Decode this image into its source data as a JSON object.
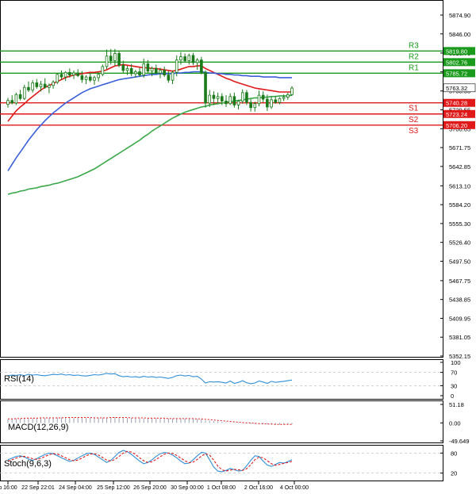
{
  "chart_data": [
    {
      "type": "candlestick",
      "title": "",
      "ylim": [
        5352.15,
        5874.9
      ],
      "yticks": [
        "5874.90",
        "5846.00",
        "5816.70",
        "5787.75",
        "5758.55",
        "5729.55",
        "5700.65",
        "5671.75",
        "5642.85",
        "5613.10",
        "5584.20",
        "5555.30",
        "5526.40",
        "5497.50",
        "5467.75",
        "5438.85",
        "5409.95",
        "5381.05",
        "5352.15"
      ],
      "current_price": "5763.32",
      "candles": [
        {
          "o": 5738,
          "h": 5748,
          "l": 5733,
          "c": 5744
        },
        {
          "o": 5744,
          "h": 5752,
          "l": 5738,
          "c": 5740
        },
        {
          "o": 5740,
          "h": 5756,
          "l": 5737,
          "c": 5753
        },
        {
          "o": 5753,
          "h": 5760,
          "l": 5744,
          "c": 5747
        },
        {
          "o": 5747,
          "h": 5768,
          "l": 5745,
          "c": 5764
        },
        {
          "o": 5764,
          "h": 5773,
          "l": 5757,
          "c": 5760
        },
        {
          "o": 5760,
          "h": 5775,
          "l": 5756,
          "c": 5771
        },
        {
          "o": 5771,
          "h": 5777,
          "l": 5762,
          "c": 5765
        },
        {
          "o": 5765,
          "h": 5774,
          "l": 5758,
          "c": 5769
        },
        {
          "o": 5769,
          "h": 5778,
          "l": 5762,
          "c": 5764
        },
        {
          "o": 5764,
          "h": 5770,
          "l": 5755,
          "c": 5767
        },
        {
          "o": 5767,
          "h": 5775,
          "l": 5762,
          "c": 5772
        },
        {
          "o": 5772,
          "h": 5786,
          "l": 5769,
          "c": 5784
        },
        {
          "o": 5784,
          "h": 5790,
          "l": 5776,
          "c": 5780
        },
        {
          "o": 5780,
          "h": 5789,
          "l": 5774,
          "c": 5787
        },
        {
          "o": 5787,
          "h": 5793,
          "l": 5779,
          "c": 5783
        },
        {
          "o": 5783,
          "h": 5790,
          "l": 5777,
          "c": 5786
        },
        {
          "o": 5786,
          "h": 5792,
          "l": 5780,
          "c": 5782
        },
        {
          "o": 5782,
          "h": 5789,
          "l": 5771,
          "c": 5776
        },
        {
          "o": 5776,
          "h": 5783,
          "l": 5769,
          "c": 5780
        },
        {
          "o": 5780,
          "h": 5786,
          "l": 5772,
          "c": 5775
        },
        {
          "o": 5775,
          "h": 5782,
          "l": 5768,
          "c": 5779
        },
        {
          "o": 5779,
          "h": 5787,
          "l": 5773,
          "c": 5784
        },
        {
          "o": 5784,
          "h": 5799,
          "l": 5781,
          "c": 5796
        },
        {
          "o": 5796,
          "h": 5822,
          "l": 5792,
          "c": 5812
        },
        {
          "o": 5812,
          "h": 5823,
          "l": 5799,
          "c": 5805
        },
        {
          "o": 5805,
          "h": 5823,
          "l": 5797,
          "c": 5816
        },
        {
          "o": 5816,
          "h": 5820,
          "l": 5795,
          "c": 5798
        },
        {
          "o": 5798,
          "h": 5805,
          "l": 5786,
          "c": 5790
        },
        {
          "o": 5790,
          "h": 5797,
          "l": 5783,
          "c": 5793
        },
        {
          "o": 5793,
          "h": 5800,
          "l": 5781,
          "c": 5785
        },
        {
          "o": 5785,
          "h": 5791,
          "l": 5779,
          "c": 5788
        },
        {
          "o": 5788,
          "h": 5794,
          "l": 5780,
          "c": 5783
        },
        {
          "o": 5783,
          "h": 5808,
          "l": 5779,
          "c": 5800
        },
        {
          "o": 5800,
          "h": 5806,
          "l": 5786,
          "c": 5789
        },
        {
          "o": 5789,
          "h": 5796,
          "l": 5781,
          "c": 5793
        },
        {
          "o": 5793,
          "h": 5799,
          "l": 5784,
          "c": 5786
        },
        {
          "o": 5786,
          "h": 5794,
          "l": 5778,
          "c": 5790
        },
        {
          "o": 5790,
          "h": 5796,
          "l": 5780,
          "c": 5783
        },
        {
          "o": 5783,
          "h": 5789,
          "l": 5771,
          "c": 5775
        },
        {
          "o": 5775,
          "h": 5790,
          "l": 5769,
          "c": 5787
        },
        {
          "o": 5787,
          "h": 5813,
          "l": 5781,
          "c": 5806
        },
        {
          "o": 5806,
          "h": 5818,
          "l": 5799,
          "c": 5811
        },
        {
          "o": 5811,
          "h": 5816,
          "l": 5802,
          "c": 5805
        },
        {
          "o": 5805,
          "h": 5816,
          "l": 5799,
          "c": 5813
        },
        {
          "o": 5813,
          "h": 5817,
          "l": 5798,
          "c": 5802
        },
        {
          "o": 5802,
          "h": 5809,
          "l": 5791,
          "c": 5806
        },
        {
          "o": 5806,
          "h": 5811,
          "l": 5784,
          "c": 5787
        },
        {
          "o": 5787,
          "h": 5790,
          "l": 5733,
          "c": 5740
        },
        {
          "o": 5740,
          "h": 5760,
          "l": 5734,
          "c": 5752
        },
        {
          "o": 5752,
          "h": 5758,
          "l": 5737,
          "c": 5747
        },
        {
          "o": 5747,
          "h": 5756,
          "l": 5740,
          "c": 5750
        },
        {
          "o": 5750,
          "h": 5755,
          "l": 5737,
          "c": 5743
        },
        {
          "o": 5743,
          "h": 5752,
          "l": 5734,
          "c": 5739
        },
        {
          "o": 5739,
          "h": 5755,
          "l": 5737,
          "c": 5750
        },
        {
          "o": 5750,
          "h": 5756,
          "l": 5733,
          "c": 5737
        },
        {
          "o": 5737,
          "h": 5745,
          "l": 5730,
          "c": 5743
        },
        {
          "o": 5743,
          "h": 5761,
          "l": 5739,
          "c": 5756
        },
        {
          "o": 5756,
          "h": 5760,
          "l": 5737,
          "c": 5741
        },
        {
          "o": 5741,
          "h": 5746,
          "l": 5727,
          "c": 5733
        },
        {
          "o": 5733,
          "h": 5742,
          "l": 5727,
          "c": 5739
        },
        {
          "o": 5739,
          "h": 5759,
          "l": 5735,
          "c": 5752
        },
        {
          "o": 5752,
          "h": 5758,
          "l": 5741,
          "c": 5746
        },
        {
          "o": 5746,
          "h": 5753,
          "l": 5728,
          "c": 5734
        },
        {
          "o": 5734,
          "h": 5750,
          "l": 5731,
          "c": 5745
        },
        {
          "o": 5745,
          "h": 5751,
          "l": 5739,
          "c": 5741
        },
        {
          "o": 5741,
          "h": 5749,
          "l": 5738,
          "c": 5747
        },
        {
          "o": 5747,
          "h": 5753,
          "l": 5743,
          "c": 5749
        },
        {
          "o": 5749,
          "h": 5756,
          "l": 5745,
          "c": 5753
        },
        {
          "o": 5753,
          "h": 5766,
          "l": 5751,
          "c": 5763
        }
      ],
      "moving_averages": [
        {
          "color": "#e01818",
          "values": [
            5712,
            5720,
            5728,
            5734,
            5739,
            5745,
            5750,
            5755,
            5760,
            5764,
            5767,
            5770,
            5773,
            5776,
            5779,
            5781,
            5783,
            5784,
            5785,
            5786,
            5787,
            5787,
            5788,
            5789,
            5791,
            5794,
            5797,
            5798,
            5799,
            5798,
            5797,
            5796,
            5795,
            5794,
            5794,
            5793,
            5793,
            5792,
            5791,
            5790,
            5789,
            5790,
            5792,
            5794,
            5796,
            5796,
            5797,
            5797,
            5793,
            5790,
            5787,
            5784,
            5781,
            5778,
            5776,
            5773,
            5771,
            5769,
            5767,
            5765,
            5763,
            5762,
            5761,
            5760,
            5759,
            5758,
            5757,
            5757,
            5757,
            5757
          ]
        },
        {
          "color": "#3b5fd9",
          "values": [
            5636,
            5646,
            5656,
            5665,
            5674,
            5683,
            5691,
            5699,
            5706,
            5713,
            5719,
            5725,
            5730,
            5735,
            5740,
            5744,
            5748,
            5752,
            5756,
            5759,
            5762,
            5764,
            5766,
            5768,
            5770,
            5772,
            5774,
            5776,
            5777,
            5778,
            5779,
            5780,
            5781,
            5782,
            5783,
            5784,
            5784,
            5785,
            5785,
            5785,
            5785,
            5786,
            5786,
            5787,
            5787,
            5788,
            5788,
            5788,
            5787,
            5786,
            5786,
            5785,
            5785,
            5784,
            5784,
            5783,
            5783,
            5782,
            5782,
            5781,
            5781,
            5781,
            5780,
            5780,
            5780,
            5780,
            5779,
            5779,
            5779,
            5779
          ]
        },
        {
          "color": "#3aa84a",
          "values": [
            5600,
            5602,
            5603,
            5605,
            5606,
            5608,
            5609,
            5610,
            5612,
            5613,
            5614,
            5616,
            5617,
            5619,
            5621,
            5623,
            5625,
            5627,
            5630,
            5633,
            5636,
            5639,
            5643,
            5647,
            5651,
            5655,
            5659,
            5663,
            5667,
            5671,
            5675,
            5679,
            5683,
            5688,
            5692,
            5697,
            5701,
            5705,
            5709,
            5713,
            5717,
            5720,
            5723,
            5726,
            5728,
            5730,
            5732,
            5734,
            5735,
            5737,
            5738,
            5739,
            5740,
            5741,
            5742,
            5743,
            5744,
            5745,
            5746,
            5747,
            5748,
            5748,
            5749,
            5749,
            5750,
            5750,
            5751,
            5751,
            5751,
            5752
          ]
        }
      ],
      "levels": [
        {
          "name": "R3",
          "value": "5819.80",
          "kind": "resistance"
        },
        {
          "name": "R2",
          "value": "5802.76",
          "kind": "resistance"
        },
        {
          "name": "R1",
          "value": "5785.72",
          "kind": "resistance"
        },
        {
          "name": "S1",
          "value": "5740.28",
          "kind": "support"
        },
        {
          "name": "S2",
          "value": "5723.24",
          "kind": "support"
        },
        {
          "name": "S3",
          "value": "5706.20",
          "kind": "support"
        }
      ],
      "x_labels": [
        "p 16:00",
        "22 Sep 22:01",
        "24 Sep 04:00",
        "25 Sep 12:00",
        "26 Sep 20:00",
        "30 Sep 00:00",
        "1 Oct 08:00",
        "2 Oct 16:00",
        "4 Oct 00:00"
      ]
    },
    {
      "type": "line",
      "title": "RSI(14)",
      "ylim": [
        0,
        100
      ],
      "yticks": [
        "100",
        "70",
        "30",
        "0"
      ],
      "series": [
        {
          "color": "#2f8fd6",
          "values": [
            60,
            62,
            61,
            63,
            60,
            64,
            62,
            63,
            61,
            60,
            62,
            64,
            63,
            65,
            62,
            63,
            61,
            62,
            60,
            59,
            61,
            63,
            62,
            64,
            67,
            65,
            66,
            60,
            57,
            58,
            56,
            57,
            55,
            58,
            56,
            57,
            55,
            56,
            54,
            52,
            55,
            60,
            62,
            59,
            61,
            57,
            58,
            50,
            38,
            42,
            41,
            42,
            40,
            38,
            44,
            37,
            40,
            45,
            39,
            36,
            38,
            44,
            41,
            37,
            43,
            40,
            42,
            43,
            45,
            47
          ]
        }
      ]
    },
    {
      "type": "bar",
      "title": "MACD(12,26,9)",
      "ylim": [
        -49.649,
        51.18
      ],
      "yticks": [
        "51.18",
        "0.00",
        "-49.649"
      ],
      "signal_color": "#e01818",
      "bar_color": "#9aa0b0",
      "histogram": [
        10,
        11,
        12,
        12,
        13,
        13,
        13,
        14,
        14,
        14,
        14,
        14,
        15,
        15,
        15,
        15,
        15,
        15,
        15,
        14,
        14,
        14,
        14,
        14,
        15,
        15,
        16,
        15,
        15,
        14,
        14,
        14,
        13,
        13,
        13,
        13,
        13,
        12,
        12,
        12,
        12,
        12,
        12,
        12,
        12,
        11,
        11,
        10,
        7,
        6,
        5,
        4,
        3,
        2,
        1,
        0,
        -1,
        -1,
        -2,
        -3,
        -3,
        -3,
        -4,
        -4,
        -5,
        -5,
        -5,
        -5,
        -4,
        -4
      ],
      "signal": [
        11,
        11,
        12,
        12,
        13,
        13,
        13,
        13,
        14,
        14,
        14,
        14,
        14,
        14,
        15,
        15,
        15,
        15,
        15,
        15,
        15,
        14,
        14,
        14,
        14,
        15,
        15,
        15,
        15,
        15,
        14,
        14,
        14,
        14,
        13,
        13,
        13,
        13,
        13,
        12,
        12,
        12,
        12,
        12,
        12,
        12,
        11,
        11,
        10,
        9,
        8,
        7,
        6,
        5,
        4,
        3,
        2,
        1,
        0,
        0,
        -1,
        -2,
        -2,
        -3,
        -3,
        -4,
        -4,
        -4,
        -4,
        -4
      ]
    },
    {
      "type": "line",
      "title": "Stoch(9,6,3)",
      "ylim": [
        0,
        100
      ],
      "yticks": [
        "80",
        "20"
      ],
      "series": [
        {
          "color": "#2f8fd6",
          "values": [
            60,
            65,
            70,
            72,
            68,
            62,
            58,
            63,
            70,
            76,
            80,
            78,
            72,
            66,
            60,
            55,
            58,
            65,
            72,
            78,
            80,
            76,
            68,
            60,
            52,
            58,
            70,
            82,
            88,
            84,
            76,
            66,
            56,
            48,
            52,
            60,
            70,
            78,
            82,
            80,
            74,
            66,
            56,
            48,
            50,
            60,
            72,
            82,
            80,
            60,
            38,
            26,
            24,
            28,
            34,
            30,
            26,
            28,
            42,
            58,
            72,
            70,
            56,
            44,
            40,
            46,
            52,
            50,
            54,
            60
          ]
        },
        {
          "color": "#e01818",
          "values": [
            56,
            60,
            65,
            69,
            70,
            67,
            63,
            61,
            64,
            70,
            75,
            78,
            77,
            72,
            66,
            60,
            57,
            59,
            65,
            72,
            77,
            78,
            74,
            67,
            59,
            56,
            61,
            70,
            80,
            85,
            83,
            76,
            66,
            57,
            52,
            54,
            61,
            69,
            77,
            80,
            79,
            73,
            65,
            57,
            51,
            53,
            61,
            71,
            78,
            74,
            59,
            41,
            30,
            26,
            29,
            31,
            30,
            28,
            33,
            45,
            60,
            68,
            66,
            57,
            48,
            43,
            46,
            49,
            52,
            55
          ]
        }
      ]
    }
  ]
}
